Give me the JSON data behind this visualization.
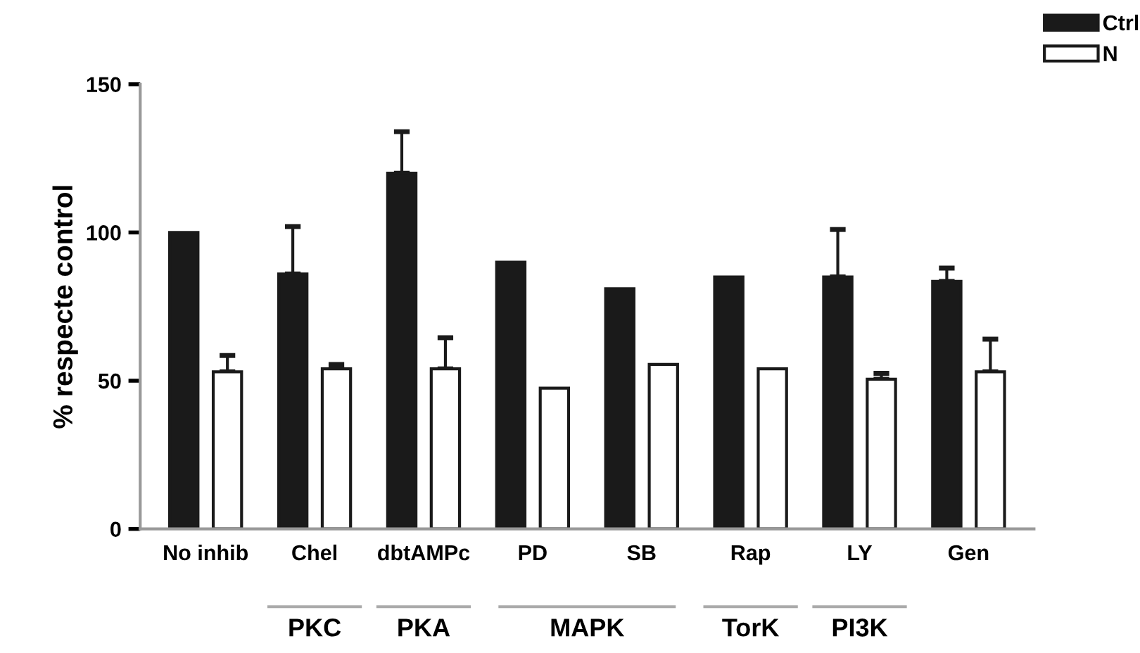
{
  "chart_data": {
    "type": "bar",
    "ylabel": "% respecte control",
    "categories": [
      "No inhib",
      "Chel",
      "dbtAMPc",
      "PD",
      "SB",
      "Rap",
      "LY",
      "Gen"
    ],
    "series": [
      {
        "name": "Ctrl",
        "color": "#1a1a1a",
        "values": [
          100,
          86,
          120,
          90,
          81,
          85,
          85,
          83.5
        ],
        "errors": [
          null,
          [
            86,
            102
          ],
          [
            120,
            134
          ],
          null,
          null,
          null,
          [
            85,
            101
          ],
          [
            83.5,
            88
          ]
        ]
      },
      {
        "name": "N",
        "color": "#ffffff",
        "values": [
          53,
          54,
          54,
          47.5,
          55.5,
          54,
          50.5,
          53
        ],
        "errors": [
          [
            53,
            58.5
          ],
          [
            54,
            55.5
          ],
          [
            54,
            64.5
          ],
          null,
          null,
          null,
          [
            50.5,
            52.5
          ],
          [
            53,
            64
          ]
        ]
      }
    ],
    "annotations": [
      "PKC",
      "PKA",
      "MAPK",
      "TorK",
      "PI3K"
    ],
    "ylim": [
      0,
      150
    ],
    "yticks": [
      0,
      50,
      100,
      150
    ],
    "grid": false,
    "legend": "top right"
  }
}
